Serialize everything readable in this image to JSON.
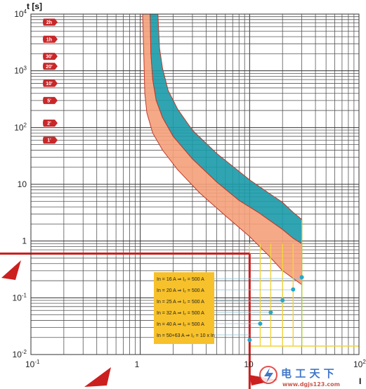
{
  "chart_data": {
    "type": "area",
    "title": "",
    "ylabel": "t [s]",
    "xlabel": "I",
    "x_scale": "log",
    "y_scale": "log",
    "xlim": [
      0.1,
      100
    ],
    "ylim": [
      0.01,
      10000
    ],
    "grid": true,
    "x_ticks": [
      {
        "base": "10",
        "exp": "-1"
      },
      {
        "base": "1",
        "exp": ""
      },
      {
        "base": "10",
        "exp": ""
      },
      {
        "base": "10",
        "exp": "2"
      }
    ],
    "y_ticks": [
      {
        "value": 10000,
        "base": "10",
        "exp": "4"
      },
      {
        "value": 1000,
        "base": "10",
        "exp": "3"
      },
      {
        "value": 100,
        "base": "10",
        "exp": "2"
      },
      {
        "value": 10,
        "base": "10",
        "exp": ""
      },
      {
        "value": 1,
        "base": "1",
        "exp": ""
      },
      {
        "value": 0.1,
        "base": "10",
        "exp": "-1"
      },
      {
        "value": 0.01,
        "base": "10",
        "exp": "-2"
      }
    ],
    "time_labels": [
      {
        "label": "2h",
        "value": 7200
      },
      {
        "label": "1h",
        "value": 3600
      },
      {
        "label": "30'",
        "value": 1800
      },
      {
        "label": "20'",
        "value": 1200
      },
      {
        "label": "10'",
        "value": 600
      },
      {
        "label": "5'",
        "value": 300
      },
      {
        "label": "2'",
        "value": 120
      },
      {
        "label": "1'",
        "value": 60
      }
    ],
    "series": [
      {
        "color": "#1a9ba8",
        "edge": "#c0392b",
        "lower": [
          [
            1.23,
            10000
          ],
          [
            1.25,
            2000
          ],
          [
            1.3,
            700
          ],
          [
            1.4,
            300
          ],
          [
            1.6,
            150
          ],
          [
            2,
            70
          ],
          [
            3,
            28
          ],
          [
            5,
            11
          ],
          [
            8,
            5.2
          ],
          [
            12,
            3.2
          ],
          [
            20,
            1.6
          ],
          [
            25,
            1.12
          ],
          [
            30,
            0.9
          ]
        ],
        "upper": [
          [
            1.45,
            10000
          ],
          [
            1.5,
            2500
          ],
          [
            1.6,
            1100
          ],
          [
            1.8,
            450
          ],
          [
            2.2,
            210
          ],
          [
            3,
            90
          ],
          [
            5,
            35
          ],
          [
            10,
            12
          ],
          [
            15,
            7
          ],
          [
            20,
            4.8
          ],
          [
            25,
            3.2
          ],
          [
            30,
            2.4
          ]
        ]
      },
      {
        "color": "#f4a07a",
        "edge": "#c0392b",
        "lower": [
          [
            1.05,
            10000
          ],
          [
            1.08,
            1500
          ],
          [
            1.1,
            400
          ],
          [
            1.15,
            180
          ],
          [
            1.3,
            80
          ],
          [
            1.6,
            40
          ],
          [
            2.2,
            18
          ],
          [
            3.5,
            7
          ],
          [
            6,
            2.8
          ],
          [
            10,
            1.2
          ],
          [
            15,
            0.55
          ],
          [
            20,
            0.3
          ],
          [
            25,
            0.22
          ],
          [
            30,
            0.17
          ]
        ],
        "upper": [
          [
            1.23,
            10000
          ],
          [
            1.25,
            2000
          ],
          [
            1.3,
            700
          ],
          [
            1.4,
            300
          ],
          [
            1.6,
            150
          ],
          [
            2,
            70
          ],
          [
            3,
            28
          ],
          [
            5,
            11
          ],
          [
            8,
            5.2
          ],
          [
            12,
            3.2
          ],
          [
            20,
            1.6
          ],
          [
            25,
            1.12
          ],
          [
            30,
            0.9
          ]
        ]
      }
    ],
    "cursor": {
      "x": 10,
      "y": 0.6,
      "color": "#cc1f1f"
    },
    "legend": {
      "position": "bottom-center",
      "background": "#f7c12b",
      "entries": [
        {
          "label": "In = 16 A ⇒ I₂ = 500 A",
          "x": 30,
          "y": 0.23
        },
        {
          "label": "In = 20 A ⇒ I₂ = 500 A",
          "x": 25,
          "y": 0.14
        },
        {
          "label": "In = 25 A ⇒ I₂ = 500 A",
          "x": 20,
          "y": 0.09
        },
        {
          "label": "In = 32 A ⇒ I₂ = 500 A",
          "x": 15.6,
          "y": 0.055
        },
        {
          "label": "In = 40 A ⇒ I₂ = 500 A",
          "x": 12.5,
          "y": 0.035
        },
        {
          "label": "In = 50+63 A ⇒ I₂ = 10 x In",
          "x": 10,
          "y": 0.018
        }
      ],
      "point_color": "#27a7c9",
      "line_color": "#f2d43a"
    },
    "watermark": {
      "main": "电 工 天 下",
      "url": "www.dgjs123.com"
    }
  }
}
